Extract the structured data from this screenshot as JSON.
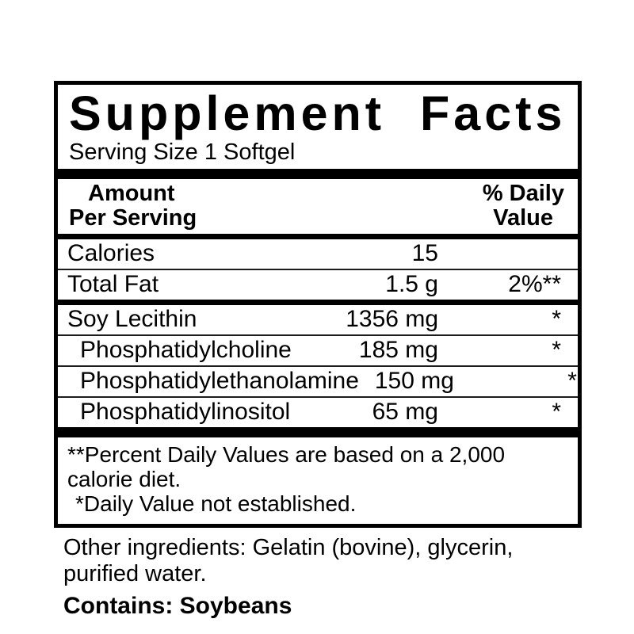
{
  "panel": {
    "title": "Supplement Facts",
    "serving_size": "Serving Size 1 Softgel",
    "column_header": {
      "amount_line1": "Amount",
      "amount_line2": "Per Serving",
      "dv_line1": "% Daily",
      "dv_line2": "Value"
    },
    "rows": [
      {
        "name": "Calories",
        "amount": "15",
        "dv": ""
      },
      {
        "name": "Total Fat",
        "amount": "1.5 g",
        "dv": "2%**"
      },
      {
        "name": "Soy Lecithin",
        "amount": "1356 mg",
        "dv": "*"
      },
      {
        "name": "Phosphatidylcholine",
        "amount": "185 mg",
        "dv": "*"
      },
      {
        "name": "Phosphatidylethanolamine",
        "amount": "150 mg",
        "dv": "*"
      },
      {
        "name": "Phosphatidylinositol",
        "amount": "65 mg",
        "dv": "*"
      }
    ],
    "footnotes": [
      "**Percent Daily Values are based on a 2,000 calorie diet.",
      "*Daily Value not established."
    ]
  },
  "other_ingredients": "Other ingredients: Gelatin (bovine), glycerin, purified water.",
  "contains": "Contains: Soybeans",
  "colors": {
    "text": "#000000",
    "background": "#ffffff",
    "rule": "#000000"
  }
}
